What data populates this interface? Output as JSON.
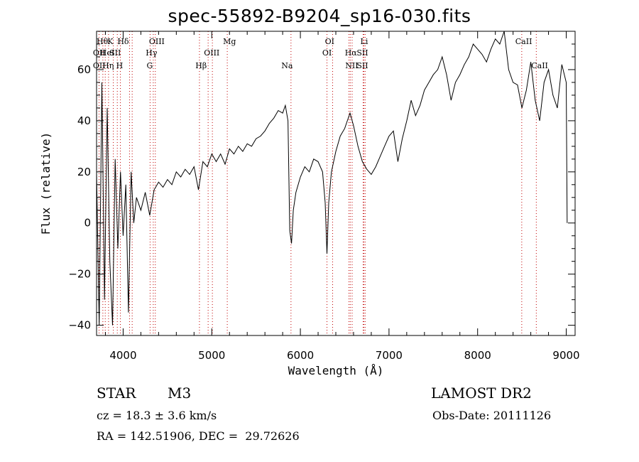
{
  "chart_data": {
    "type": "line",
    "title": "spec-55892-B9204_sp16-030.fits",
    "xlabel": "Wavelength (Å)",
    "ylabel": "Flux (relative)",
    "xlim": [
      3700,
      9100
    ],
    "ylim": [
      -44,
      75
    ],
    "x_ticks": [
      4000,
      5000,
      6000,
      7000,
      8000,
      9000
    ],
    "y_ticks": [
      -40,
      -20,
      0,
      20,
      40,
      60
    ],
    "grid": false,
    "series": [
      {
        "points": [
          [
            3700,
            20
          ],
          [
            3730,
            -40
          ],
          [
            3760,
            55
          ],
          [
            3790,
            -30
          ],
          [
            3820,
            45
          ],
          [
            3850,
            -15
          ],
          [
            3880,
            -40
          ],
          [
            3910,
            25
          ],
          [
            3940,
            -10
          ],
          [
            3970,
            20
          ],
          [
            4000,
            -5
          ],
          [
            4030,
            15
          ],
          [
            4060,
            -35
          ],
          [
            4090,
            20
          ],
          [
            4120,
            0
          ],
          [
            4150,
            10
          ],
          [
            4200,
            5
          ],
          [
            4250,
            12
          ],
          [
            4300,
            3
          ],
          [
            4350,
            13
          ],
          [
            4400,
            16
          ],
          [
            4450,
            14
          ],
          [
            4500,
            17
          ],
          [
            4550,
            15
          ],
          [
            4600,
            20
          ],
          [
            4650,
            18
          ],
          [
            4700,
            21
          ],
          [
            4750,
            19
          ],
          [
            4800,
            22
          ],
          [
            4850,
            13
          ],
          [
            4900,
            24
          ],
          [
            4950,
            22
          ],
          [
            5000,
            27
          ],
          [
            5050,
            24
          ],
          [
            5100,
            27
          ],
          [
            5150,
            23
          ],
          [
            5200,
            29
          ],
          [
            5250,
            27
          ],
          [
            5300,
            30
          ],
          [
            5350,
            28
          ],
          [
            5400,
            31
          ],
          [
            5450,
            30
          ],
          [
            5500,
            33
          ],
          [
            5550,
            34
          ],
          [
            5600,
            36
          ],
          [
            5650,
            39
          ],
          [
            5700,
            41
          ],
          [
            5750,
            44
          ],
          [
            5800,
            43
          ],
          [
            5830,
            46
          ],
          [
            5860,
            40
          ],
          [
            5880,
            -3
          ],
          [
            5900,
            -8
          ],
          [
            5920,
            5
          ],
          [
            5950,
            12
          ],
          [
            6000,
            18
          ],
          [
            6050,
            22
          ],
          [
            6100,
            20
          ],
          [
            6150,
            25
          ],
          [
            6200,
            24
          ],
          [
            6250,
            20
          ],
          [
            6280,
            8
          ],
          [
            6300,
            -12
          ],
          [
            6320,
            8
          ],
          [
            6350,
            20
          ],
          [
            6400,
            28
          ],
          [
            6450,
            34
          ],
          [
            6500,
            37
          ],
          [
            6530,
            40
          ],
          [
            6560,
            43
          ],
          [
            6600,
            38
          ],
          [
            6650,
            30
          ],
          [
            6700,
            24
          ],
          [
            6750,
            21
          ],
          [
            6800,
            19
          ],
          [
            6850,
            22
          ],
          [
            6900,
            26
          ],
          [
            6950,
            30
          ],
          [
            7000,
            34
          ],
          [
            7050,
            36
          ],
          [
            7100,
            24
          ],
          [
            7150,
            33
          ],
          [
            7200,
            40
          ],
          [
            7250,
            48
          ],
          [
            7300,
            42
          ],
          [
            7350,
            46
          ],
          [
            7400,
            52
          ],
          [
            7450,
            55
          ],
          [
            7500,
            58
          ],
          [
            7550,
            60
          ],
          [
            7600,
            65
          ],
          [
            7650,
            58
          ],
          [
            7700,
            48
          ],
          [
            7750,
            55
          ],
          [
            7800,
            58
          ],
          [
            7850,
            62
          ],
          [
            7900,
            65
          ],
          [
            7950,
            70
          ],
          [
            8000,
            68
          ],
          [
            8050,
            66
          ],
          [
            8100,
            63
          ],
          [
            8150,
            68
          ],
          [
            8200,
            72
          ],
          [
            8250,
            70
          ],
          [
            8300,
            75
          ],
          [
            8350,
            60
          ],
          [
            8400,
            55
          ],
          [
            8450,
            54
          ],
          [
            8500,
            45
          ],
          [
            8550,
            52
          ],
          [
            8600,
            63
          ],
          [
            8650,
            48
          ],
          [
            8700,
            40
          ],
          [
            8750,
            55
          ],
          [
            8800,
            60
          ],
          [
            8850,
            50
          ],
          [
            8900,
            45
          ],
          [
            8950,
            62
          ],
          [
            9000,
            55
          ],
          [
            9010,
            0
          ]
        ]
      }
    ],
    "line_labels": [
      {
        "text": "Hθ",
        "row": 0
      },
      {
        "text": "K",
        "row": 0
      },
      {
        "text": "Hδ",
        "row": 0
      },
      {
        "text": "OIII",
        "row": 0
      },
      {
        "text": "Mg",
        "row": 0
      },
      {
        "text": "OI",
        "row": 0
      },
      {
        "text": "Li",
        "row": 0
      },
      {
        "text": "CaII",
        "row": 0
      },
      {
        "text": "OII",
        "row": 1
      },
      {
        "text": "HeI",
        "row": 1
      },
      {
        "text": "SII",
        "row": 1
      },
      {
        "text": "Hγ",
        "row": 1
      },
      {
        "text": "OIII",
        "row": 1
      },
      {
        "text": "OI",
        "row": 1
      },
      {
        "text": "Hα",
        "row": 1
      },
      {
        "text": "SII",
        "row": 1
      },
      {
        "text": "OII",
        "row": 2
      },
      {
        "text": "Hη",
        "row": 2
      },
      {
        "text": "H",
        "row": 2
      },
      {
        "text": "G",
        "row": 2
      },
      {
        "text": "Hβ",
        "row": 2
      },
      {
        "text": "Na",
        "row": 2
      },
      {
        "text": "NII",
        "row": 2
      },
      {
        "text": "SII",
        "row": 2
      },
      {
        "text": "CaII",
        "row": 2
      }
    ],
    "line_wavelengths": [
      {
        "x": 3728,
        "dotted": true
      },
      {
        "x": 3771,
        "dotted": true
      },
      {
        "x": 3798,
        "dotted": true
      },
      {
        "x": 3835,
        "dotted": true
      },
      {
        "x": 3889,
        "dotted": true
      },
      {
        "x": 3934,
        "dotted": true
      },
      {
        "x": 3969,
        "dotted": true
      },
      {
        "x": 4072,
        "dotted": true
      },
      {
        "x": 4102,
        "dotted": true
      },
      {
        "x": 4304,
        "dotted": true
      },
      {
        "x": 4340,
        "dotted": true
      },
      {
        "x": 4363,
        "dotted": true
      },
      {
        "x": 4861,
        "dotted": true
      },
      {
        "x": 4959,
        "dotted": true
      },
      {
        "x": 5007,
        "dotted": true
      },
      {
        "x": 5175,
        "dotted": true
      },
      {
        "x": 5894,
        "dotted": true
      },
      {
        "x": 6300,
        "dotted": true
      },
      {
        "x": 6364,
        "dotted": true
      },
      {
        "x": 6548,
        "dotted": true
      },
      {
        "x": 6563,
        "dotted": true
      },
      {
        "x": 6584,
        "dotted": true
      },
      {
        "x": 6708,
        "dotted": true
      },
      {
        "x": 6717,
        "dotted": true
      },
      {
        "x": 6731,
        "dotted": true
      },
      {
        "x": 8498,
        "dotted": true
      },
      {
        "x": 8662,
        "dotted": true
      }
    ],
    "line_label_positions": [
      3765,
      3855,
      4000,
      4380,
      5200,
      6330,
      6720,
      8520,
      3730,
      3820,
      3910,
      4320,
      5000,
      6300,
      6570,
      6700,
      3730,
      3830,
      3960,
      4300,
      4880,
      5850,
      6580,
      6700,
      8700
    ]
  },
  "info": {
    "object_type": "STAR",
    "subclass": "M3",
    "survey": "LAMOST DR2",
    "cz": "cz = 18.3 ± 3.6 km/s",
    "obs_date": "Obs-Date: 20111126",
    "coords": "RA = 142.51906, DEC =  29.72626"
  }
}
